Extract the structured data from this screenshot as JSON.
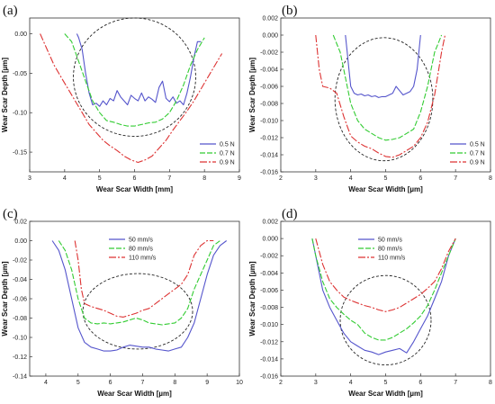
{
  "chart_data": [
    {
      "panel": "(a)",
      "type": "line",
      "xlabel": "Wear Scar Width [mm]",
      "ylabel": "Wear Scar Depth [µm]",
      "xlim": [
        3,
        9
      ],
      "ylim": [
        -0.175,
        0.02
      ],
      "x_ticks": [
        3,
        4,
        5,
        6,
        7,
        8,
        9
      ],
      "y_ticks": [
        0.0,
        -0.05,
        -0.1,
        -0.15
      ],
      "y_tick_labels": [
        "0.00",
        "-0.05",
        "-0.10",
        "-0.15"
      ],
      "legend_position": "bottom-right",
      "ellipse": {
        "cx": 6.0,
        "cy": -0.055,
        "rx": 1.75,
        "ry": 0.075
      },
      "series": [
        {
          "name": "0.5 N",
          "color": "#5555cc",
          "dash": "solid",
          "x": [
            4.35,
            4.4,
            4.5,
            4.6,
            4.7,
            4.8,
            4.9,
            5.0,
            5.1,
            5.2,
            5.3,
            5.4,
            5.5,
            5.6,
            5.7,
            5.8,
            5.9,
            6.0,
            6.1,
            6.2,
            6.3,
            6.4,
            6.5,
            6.6,
            6.7,
            6.8,
            6.9,
            7.0,
            7.1,
            7.2,
            7.3,
            7.4,
            7.5,
            7.6,
            7.7,
            7.8,
            7.9
          ],
          "y": [
            0.0,
            -0.005,
            -0.02,
            -0.05,
            -0.075,
            -0.09,
            -0.088,
            -0.092,
            -0.085,
            -0.09,
            -0.082,
            -0.085,
            -0.072,
            -0.08,
            -0.085,
            -0.09,
            -0.078,
            -0.082,
            -0.085,
            -0.075,
            -0.085,
            -0.08,
            -0.083,
            -0.087,
            -0.068,
            -0.06,
            -0.082,
            -0.086,
            -0.08,
            -0.088,
            -0.085,
            -0.09,
            -0.075,
            -0.055,
            -0.03,
            -0.01,
            -0.01
          ]
        },
        {
          "name": "0.7 N",
          "color": "#33cc33",
          "dash": "6,2",
          "x": [
            4.0,
            4.2,
            4.4,
            4.6,
            4.8,
            5.0,
            5.2,
            5.4,
            5.6,
            5.8,
            6.0,
            6.2,
            6.4,
            6.6,
            6.8,
            7.0,
            7.2,
            7.4,
            7.6,
            7.8,
            8.0
          ],
          "y": [
            0.0,
            -0.01,
            -0.035,
            -0.06,
            -0.085,
            -0.1,
            -0.11,
            -0.112,
            -0.115,
            -0.117,
            -0.117,
            -0.115,
            -0.113,
            -0.112,
            -0.108,
            -0.1,
            -0.085,
            -0.065,
            -0.04,
            -0.02,
            -0.005
          ]
        },
        {
          "name": "0.9 N",
          "color": "#dd3333",
          "dash": "8,2,2,2",
          "x": [
            3.3,
            3.5,
            3.7,
            3.9,
            4.1,
            4.3,
            4.5,
            4.7,
            4.9,
            5.1,
            5.3,
            5.5,
            5.7,
            5.9,
            6.1,
            6.3,
            6.5,
            6.7,
            6.9,
            7.1,
            7.3,
            7.5,
            7.7,
            7.9,
            8.1,
            8.3,
            8.5
          ],
          "y": [
            0.0,
            -0.02,
            -0.04,
            -0.055,
            -0.07,
            -0.085,
            -0.1,
            -0.115,
            -0.125,
            -0.135,
            -0.142,
            -0.148,
            -0.155,
            -0.16,
            -0.163,
            -0.16,
            -0.155,
            -0.145,
            -0.135,
            -0.122,
            -0.11,
            -0.098,
            -0.085,
            -0.07,
            -0.055,
            -0.04,
            -0.025
          ]
        }
      ]
    },
    {
      "panel": "(b)",
      "type": "line",
      "xlabel": "Wear Scar Width [µm]",
      "ylabel": "Wear Scar Depth [µm]",
      "xlim": [
        2,
        8
      ],
      "ylim": [
        -0.016,
        0.002
      ],
      "x_ticks": [
        2,
        3,
        4,
        5,
        6,
        7,
        8
      ],
      "y_ticks": [
        0.002,
        0.0,
        -0.002,
        -0.004,
        -0.006,
        -0.008,
        -0.01,
        -0.012,
        -0.014,
        -0.016
      ],
      "y_tick_labels": [
        "0.002",
        "0.000",
        "-0.002",
        "-0.004",
        "-0.006",
        "-0.008",
        "-0.010",
        "-0.012",
        "-0.014",
        "-0.016"
      ],
      "legend_position": "bottom-right",
      "ellipse": {
        "cx": 4.95,
        "cy": -0.0075,
        "rx": 1.4,
        "ry": 0.0072
      },
      "series": [
        {
          "name": "0.5 N",
          "color": "#5555cc",
          "dash": "solid",
          "x": [
            3.85,
            3.9,
            3.95,
            4.0,
            4.1,
            4.2,
            4.3,
            4.4,
            4.5,
            4.6,
            4.7,
            4.8,
            4.9,
            5.0,
            5.1,
            5.2,
            5.3,
            5.4,
            5.5,
            5.6,
            5.7,
            5.8,
            5.9,
            5.95,
            6.0
          ],
          "y": [
            0.0,
            -0.002,
            -0.004,
            -0.006,
            -0.0068,
            -0.007,
            -0.0069,
            -0.0071,
            -0.007,
            -0.0072,
            -0.0071,
            -0.0073,
            -0.0072,
            -0.0072,
            -0.007,
            -0.0068,
            -0.006,
            -0.0065,
            -0.007,
            -0.0068,
            -0.0066,
            -0.006,
            -0.004,
            -0.002,
            0.0
          ]
        },
        {
          "name": "0.7 N",
          "color": "#33cc33",
          "dash": "6,2",
          "x": [
            3.5,
            3.6,
            3.7,
            3.8,
            3.9,
            4.0,
            4.2,
            4.4,
            4.6,
            4.8,
            5.0,
            5.2,
            5.4,
            5.6,
            5.8,
            6.0,
            6.2,
            6.3,
            6.4,
            6.5,
            6.6
          ],
          "y": [
            0.0,
            -0.001,
            -0.002,
            -0.004,
            -0.006,
            -0.008,
            -0.01,
            -0.011,
            -0.0115,
            -0.012,
            -0.0123,
            -0.0122,
            -0.012,
            -0.0115,
            -0.011,
            -0.009,
            -0.006,
            -0.004,
            -0.002,
            -0.001,
            0.0
          ]
        },
        {
          "name": "0.9 N",
          "color": "#dd3333",
          "dash": "8,2,2,2",
          "x": [
            3.0,
            3.1,
            3.2,
            3.4,
            3.6,
            3.8,
            4.0,
            4.2,
            4.4,
            4.6,
            4.8,
            5.0,
            5.2,
            5.4,
            5.6,
            5.8,
            6.0,
            6.2,
            6.4,
            6.6,
            6.7
          ],
          "y": [
            0.0,
            -0.004,
            -0.006,
            -0.0062,
            -0.0068,
            -0.0095,
            -0.0118,
            -0.0125,
            -0.013,
            -0.0133,
            -0.0138,
            -0.0142,
            -0.0143,
            -0.014,
            -0.0135,
            -0.013,
            -0.012,
            -0.0102,
            -0.007,
            -0.002,
            0.0
          ]
        }
      ]
    },
    {
      "panel": "(c)",
      "type": "line",
      "xlabel": "Wear Scar Width [µm]",
      "ylabel": "Wear Scar Depth [µm]",
      "xlim": [
        3.5,
        10
      ],
      "ylim": [
        -0.14,
        0.02
      ],
      "x_ticks": [
        4,
        5,
        6,
        7,
        8,
        9,
        10
      ],
      "y_ticks": [
        0.02,
        0.0,
        -0.02,
        -0.04,
        -0.06,
        -0.08,
        -0.1,
        -0.12,
        -0.14
      ],
      "y_tick_labels": [
        "0.02",
        "0.00",
        "-0.02",
        "-0.04",
        "-0.06",
        "-0.08",
        "-0.10",
        "-0.12",
        "-0.14"
      ],
      "legend_position": "top-center",
      "ellipse": {
        "cx": 6.85,
        "cy": -0.073,
        "rx": 1.7,
        "ry": 0.039
      },
      "series": [
        {
          "name": "50 mm/s",
          "color": "#5555cc",
          "dash": "solid",
          "x": [
            4.2,
            4.4,
            4.6,
            4.8,
            5.0,
            5.2,
            5.4,
            5.6,
            5.8,
            6.0,
            6.2,
            6.4,
            6.6,
            6.8,
            7.0,
            7.2,
            7.4,
            7.6,
            7.8,
            8.0,
            8.2,
            8.4,
            8.6,
            8.8,
            9.0,
            9.2,
            9.4,
            9.6
          ],
          "y": [
            0.0,
            -0.01,
            -0.03,
            -0.06,
            -0.09,
            -0.105,
            -0.11,
            -0.112,
            -0.114,
            -0.114,
            -0.113,
            -0.11,
            -0.108,
            -0.109,
            -0.11,
            -0.11,
            -0.112,
            -0.113,
            -0.114,
            -0.112,
            -0.11,
            -0.1,
            -0.085,
            -0.06,
            -0.035,
            -0.015,
            -0.005,
            0.0
          ]
        },
        {
          "name": "80 mm/s",
          "color": "#33cc33",
          "dash": "6,2",
          "x": [
            4.4,
            4.6,
            4.8,
            5.0,
            5.2,
            5.4,
            5.6,
            5.8,
            6.0,
            6.2,
            6.4,
            6.6,
            6.8,
            7.0,
            7.2,
            7.4,
            7.6,
            7.8,
            8.0,
            8.2,
            8.4,
            8.6,
            8.8,
            9.0,
            9.2,
            9.4
          ],
          "y": [
            0.0,
            -0.01,
            -0.03,
            -0.06,
            -0.08,
            -0.085,
            -0.086,
            -0.085,
            -0.086,
            -0.085,
            -0.084,
            -0.082,
            -0.08,
            -0.082,
            -0.085,
            -0.086,
            -0.087,
            -0.086,
            -0.085,
            -0.08,
            -0.07,
            -0.05,
            -0.035,
            -0.02,
            -0.005,
            0.0
          ]
        },
        {
          "name": "110 mm/s",
          "color": "#dd3333",
          "dash": "8,2,2,2",
          "x": [
            4.9,
            5.0,
            5.1,
            5.2,
            5.4,
            5.6,
            5.8,
            6.0,
            6.2,
            6.4,
            6.6,
            6.8,
            7.0,
            7.2,
            7.4,
            7.6,
            7.8,
            8.0,
            8.2,
            8.4,
            8.6,
            8.8,
            9.0,
            9.2
          ],
          "y": [
            0.0,
            -0.02,
            -0.05,
            -0.065,
            -0.068,
            -0.07,
            -0.072,
            -0.075,
            -0.078,
            -0.079,
            -0.077,
            -0.075,
            -0.072,
            -0.07,
            -0.065,
            -0.06,
            -0.055,
            -0.05,
            -0.045,
            -0.035,
            -0.015,
            -0.005,
            0.0,
            0.0
          ]
        }
      ]
    },
    {
      "panel": "(d)",
      "type": "line",
      "xlabel": "Wear Scar Width [µm]",
      "ylabel": "Wear Scar Depth [µm]",
      "xlim": [
        2,
        8
      ],
      "ylim": [
        -0.016,
        0.002
      ],
      "x_ticks": [
        2,
        3,
        4,
        5,
        6,
        7,
        8
      ],
      "y_ticks": [
        0.002,
        0.0,
        -0.002,
        -0.004,
        -0.006,
        -0.008,
        -0.01,
        -0.012,
        -0.014,
        -0.016
      ],
      "y_tick_labels": [
        "0.002",
        "0.000",
        "-0.002",
        "-0.004",
        "-0.006",
        "-0.008",
        "-0.010",
        "-0.012",
        "-0.014",
        "-0.016"
      ],
      "legend_position": "top-center",
      "ellipse": {
        "cx": 5.0,
        "cy": -0.0095,
        "rx": 1.3,
        "ry": 0.0052
      },
      "series": [
        {
          "name": "50 mm/s",
          "color": "#5555cc",
          "dash": "solid",
          "x": [
            2.9,
            3.0,
            3.1,
            3.2,
            3.4,
            3.6,
            3.8,
            4.0,
            4.2,
            4.4,
            4.6,
            4.8,
            5.0,
            5.2,
            5.4,
            5.6,
            5.8,
            6.0,
            6.2,
            6.4,
            6.6,
            6.8,
            7.0
          ],
          "y": [
            0.0,
            -0.002,
            -0.004,
            -0.006,
            -0.008,
            -0.0095,
            -0.011,
            -0.012,
            -0.0125,
            -0.013,
            -0.0132,
            -0.0135,
            -0.0132,
            -0.013,
            -0.0128,
            -0.0133,
            -0.012,
            -0.0105,
            -0.009,
            -0.007,
            -0.005,
            -0.002,
            0.0
          ]
        },
        {
          "name": "80 mm/s",
          "color": "#33cc33",
          "dash": "6,2",
          "x": [
            2.9,
            3.0,
            3.2,
            3.4,
            3.6,
            3.8,
            4.0,
            4.2,
            4.4,
            4.6,
            4.8,
            5.0,
            5.2,
            5.4,
            5.6,
            5.8,
            6.0,
            6.2,
            6.4,
            6.6,
            6.8,
            7.0
          ],
          "y": [
            0.0,
            -0.002,
            -0.005,
            -0.007,
            -0.008,
            -0.0088,
            -0.0095,
            -0.01,
            -0.011,
            -0.0115,
            -0.0118,
            -0.0118,
            -0.0115,
            -0.011,
            -0.0105,
            -0.0098,
            -0.009,
            -0.0078,
            -0.006,
            -0.004,
            -0.002,
            0.0
          ]
        },
        {
          "name": "110 mm/s",
          "color": "#dd3333",
          "dash": "8,2,2,2",
          "x": [
            3.0,
            3.2,
            3.4,
            3.6,
            3.8,
            4.0,
            4.2,
            4.4,
            4.6,
            4.8,
            5.0,
            5.2,
            5.4,
            5.6,
            5.8,
            6.0,
            6.2,
            6.4,
            6.6,
            6.8,
            7.0
          ],
          "y": [
            0.0,
            -0.003,
            -0.005,
            -0.006,
            -0.0068,
            -0.0072,
            -0.0075,
            -0.0078,
            -0.008,
            -0.0083,
            -0.0085,
            -0.0083,
            -0.008,
            -0.0075,
            -0.007,
            -0.0065,
            -0.0058,
            -0.005,
            -0.0035,
            -0.0015,
            0.0
          ]
        }
      ]
    }
  ]
}
